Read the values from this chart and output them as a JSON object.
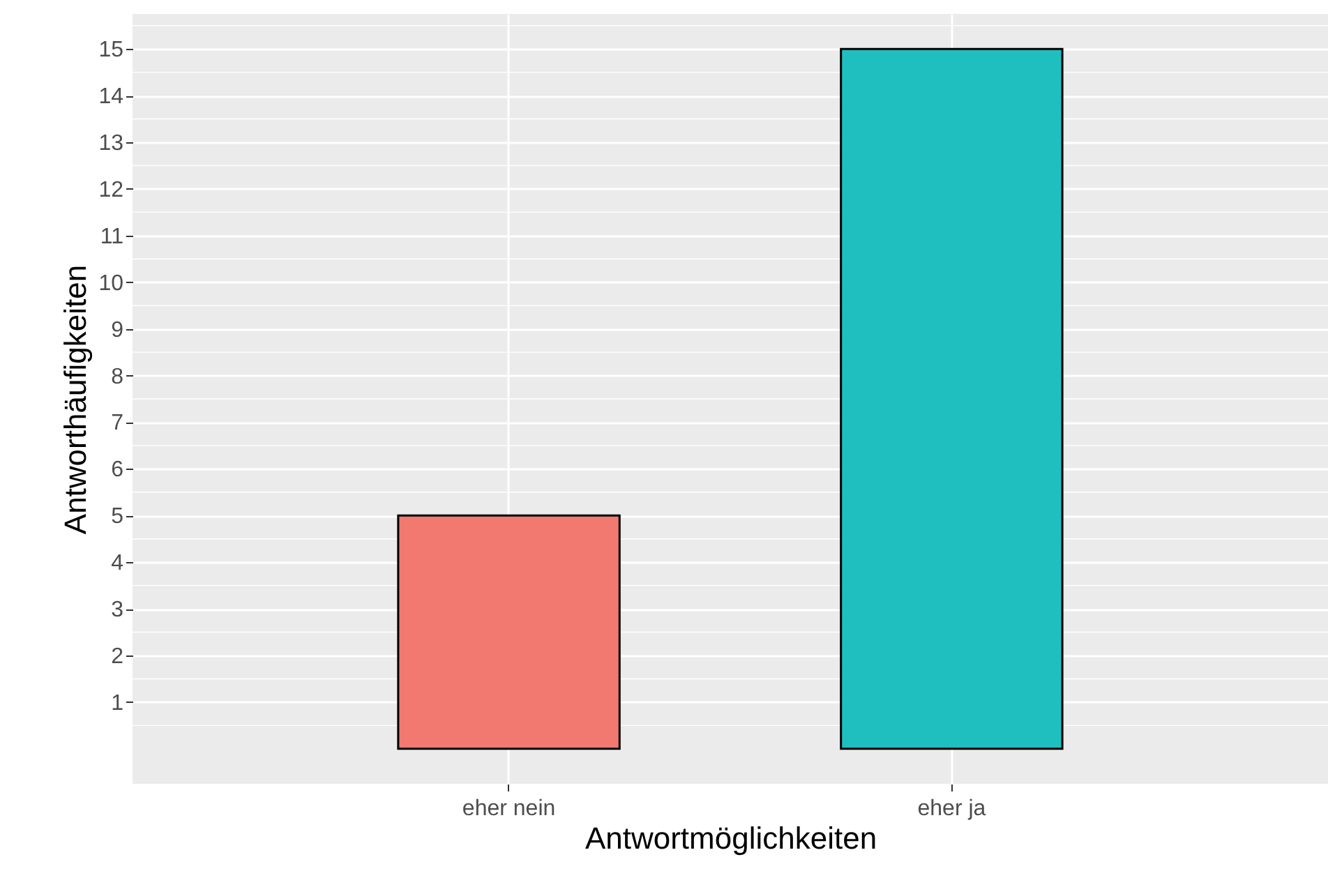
{
  "chart_data": {
    "type": "bar",
    "xlabel": "Antwortmöglichkeiten",
    "ylabel": "Antworthäufigkeiten",
    "categories": [
      "eher nein",
      "eher ja"
    ],
    "values": [
      5,
      15
    ],
    "colors": [
      "#f27970",
      "#1fbfc0"
    ],
    "ylim": [
      -0.75,
      15.75
    ],
    "yticks": [
      1,
      2,
      3,
      4,
      5,
      6,
      7,
      8,
      9,
      10,
      11,
      12,
      13,
      14,
      15
    ],
    "grid": true
  }
}
